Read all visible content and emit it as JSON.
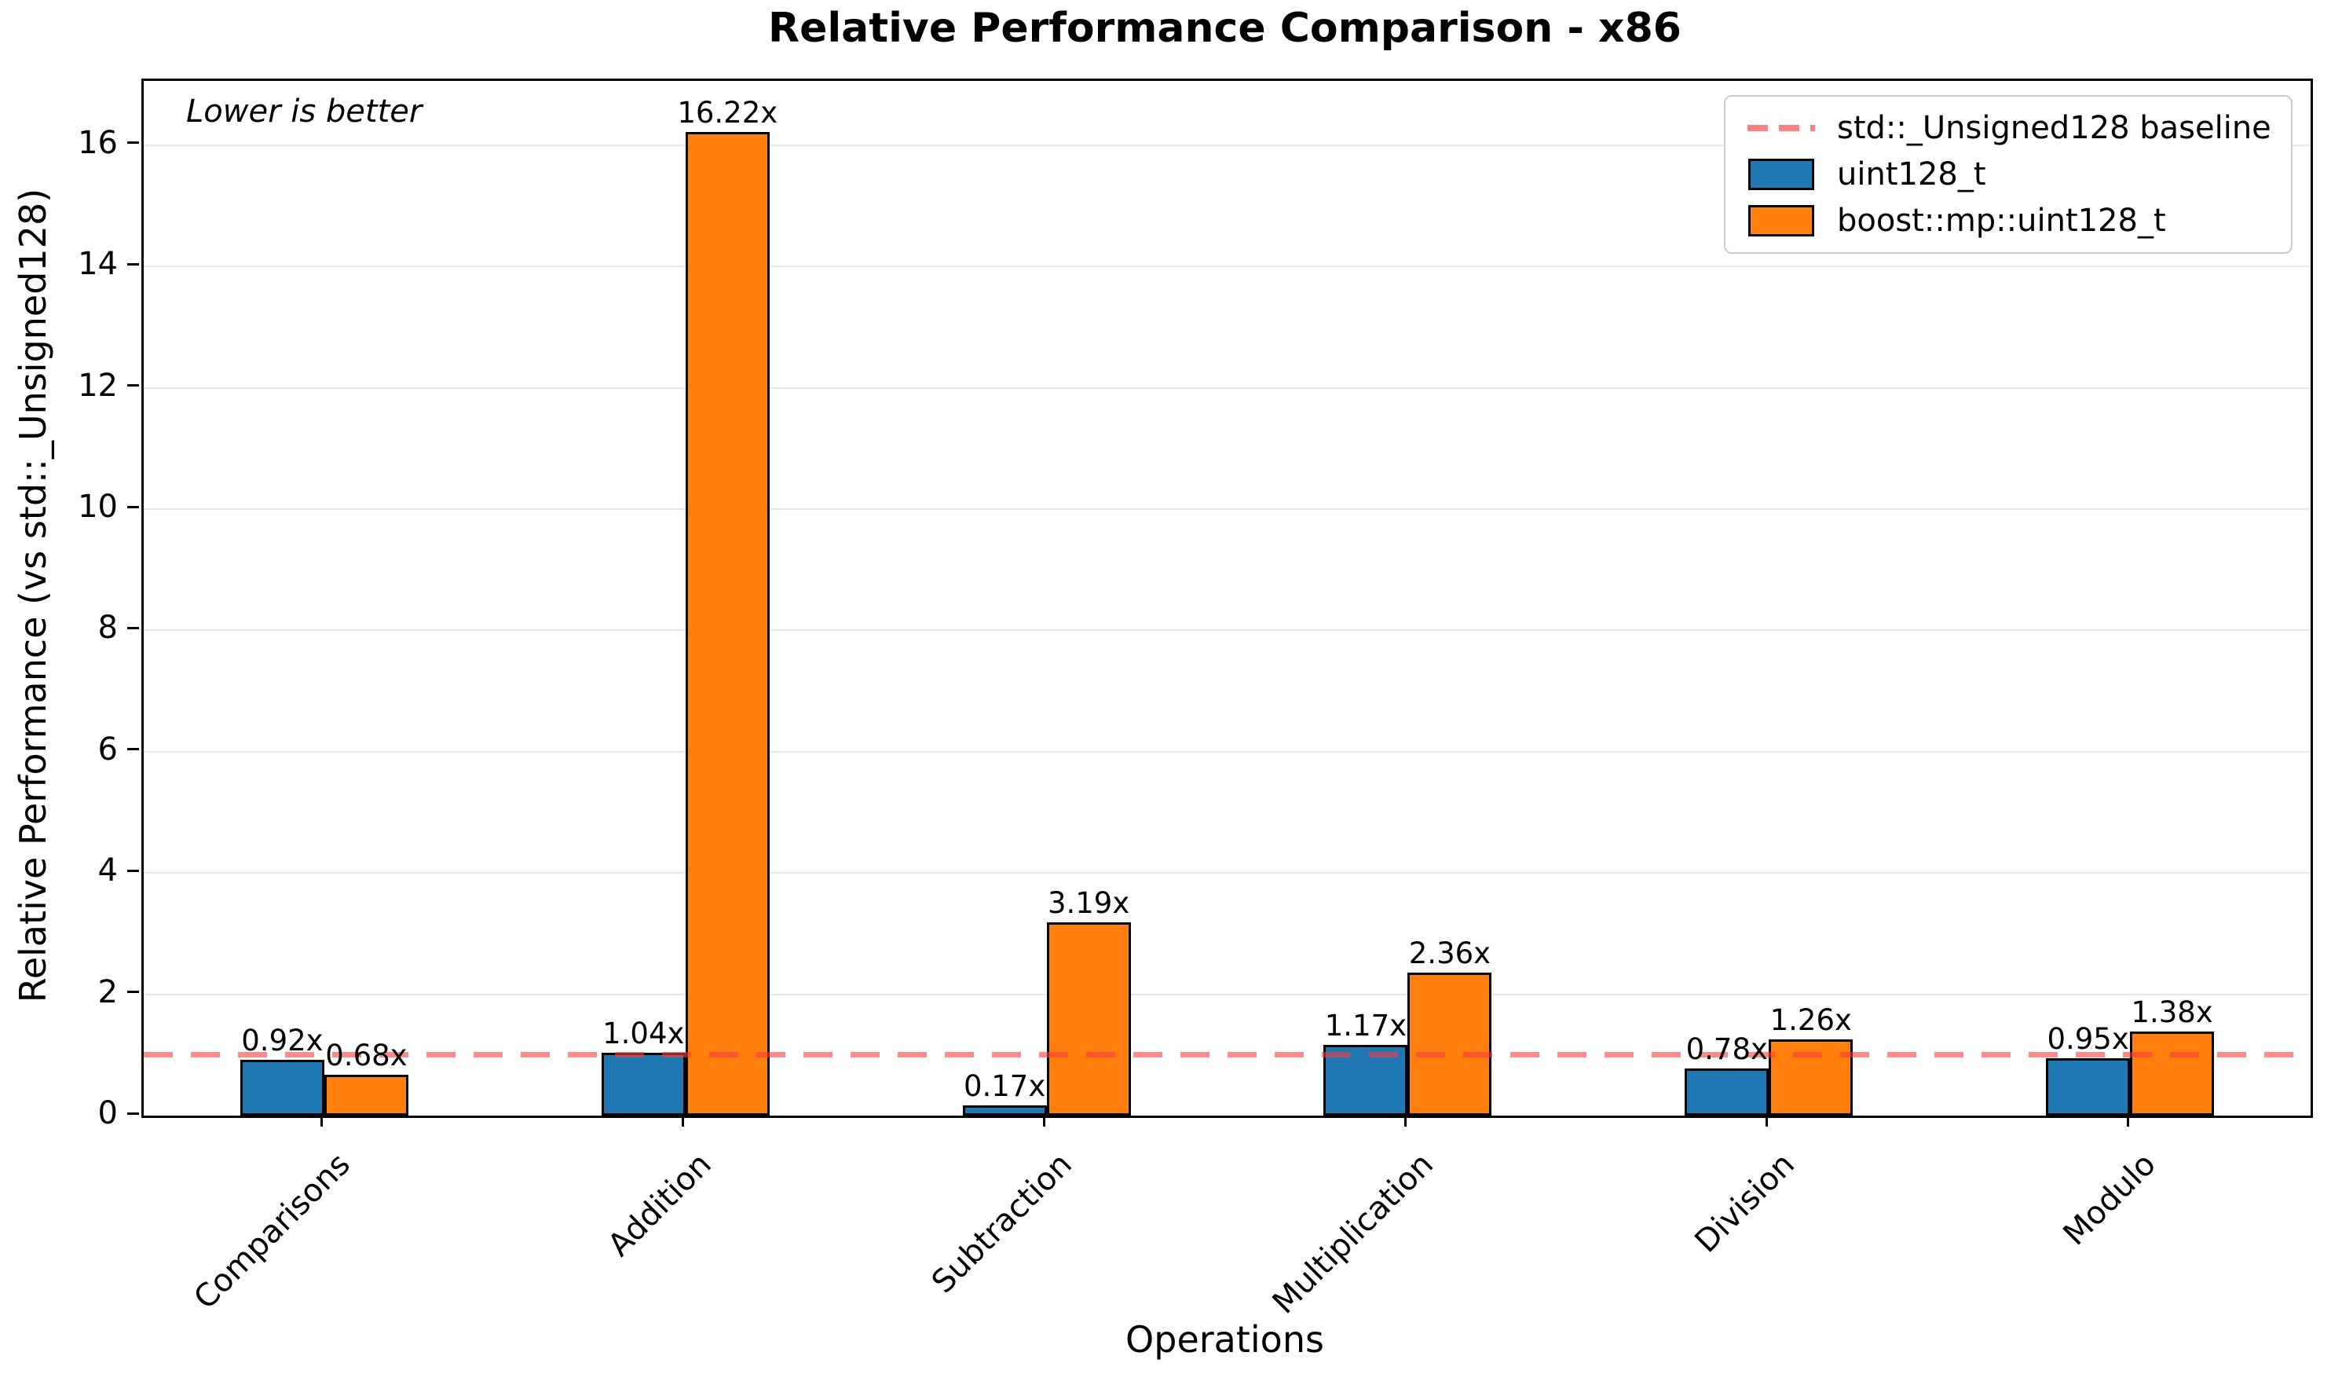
{
  "figure": {
    "title": "Relative Performance Comparison - x86",
    "annotation": "Lower is better",
    "xlabel": "Operations",
    "ylabel": "Relative Performance (vs std::_Unsigned128)"
  },
  "legend": {
    "items": [
      {
        "label": "std::_Unsigned128 baseline",
        "swatch": "dashed-line",
        "color": "#ff3b3b"
      },
      {
        "label": "uint128_t",
        "swatch": "patch",
        "color": "#1f77b4"
      },
      {
        "label": "boost::mp::uint128_t",
        "swatch": "patch",
        "color": "#ff7f0e"
      }
    ]
  },
  "chart_data": {
    "type": "bar",
    "title": "Relative Performance Comparison - x86",
    "xlabel": "Operations",
    "ylabel": "Relative Performance (vs std::_Unsigned128)",
    "annotation": "Lower is better",
    "categories": [
      "Comparisons",
      "Addition",
      "Subtraction",
      "Multiplication",
      "Division",
      "Modulo"
    ],
    "series": [
      {
        "name": "uint128_t",
        "color": "#1f77b4",
        "values": [
          0.92,
          1.04,
          0.17,
          1.17,
          0.78,
          0.95
        ],
        "labels": [
          "0.92x",
          "1.04x",
          "0.17x",
          "1.17x",
          "0.78x",
          "0.95x"
        ]
      },
      {
        "name": "boost::mp::uint128_t",
        "color": "#ff7f0e",
        "values": [
          0.68,
          16.22,
          3.19,
          2.36,
          1.26,
          1.38
        ],
        "labels": [
          "0.68x",
          "16.22x",
          "3.19x",
          "2.36x",
          "1.26x",
          "1.38x"
        ]
      }
    ],
    "baseline": {
      "value": 1.0,
      "label": "std::_Unsigned128 baseline",
      "color": "#ff3b3b"
    },
    "yticks": [
      0,
      2,
      4,
      6,
      8,
      10,
      12,
      14,
      16
    ],
    "ylim": [
      0,
      17.06
    ],
    "grid": true,
    "legend_position": "upper right",
    "grid_color": "#e8e8e8"
  }
}
